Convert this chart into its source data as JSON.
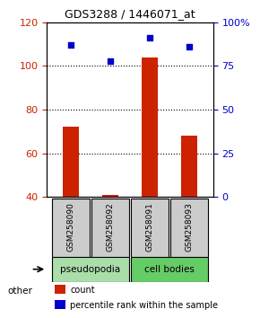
{
  "title": "GDS3288 / 1446071_at",
  "samples": [
    "GSM258090",
    "GSM258092",
    "GSM258091",
    "GSM258093"
  ],
  "groups": [
    "pseudopodia",
    "pseudopodia",
    "cell bodies",
    "cell bodies"
  ],
  "counts": [
    72,
    41,
    104,
    68
  ],
  "percentiles": [
    87,
    78,
    91,
    86
  ],
  "ylim_left": [
    40,
    120
  ],
  "ylim_right": [
    0,
    100
  ],
  "yticks_left": [
    40,
    60,
    80,
    100,
    120
  ],
  "yticks_right": [
    0,
    25,
    50,
    75,
    100
  ],
  "yticks_right_labels": [
    "0",
    "25",
    "50",
    "75",
    "100%"
  ],
  "bar_color": "#cc2200",
  "dot_color": "#0000cc",
  "group_colors": {
    "pseudopodia": "#aaddaa",
    "cell bodies": "#66cc66"
  },
  "legend_count_label": "count",
  "legend_percentile_label": "percentile rank within the sample",
  "other_label": "other",
  "gridline_color": "#000000",
  "sample_box_color": "#cccccc",
  "bar_width": 0.4
}
